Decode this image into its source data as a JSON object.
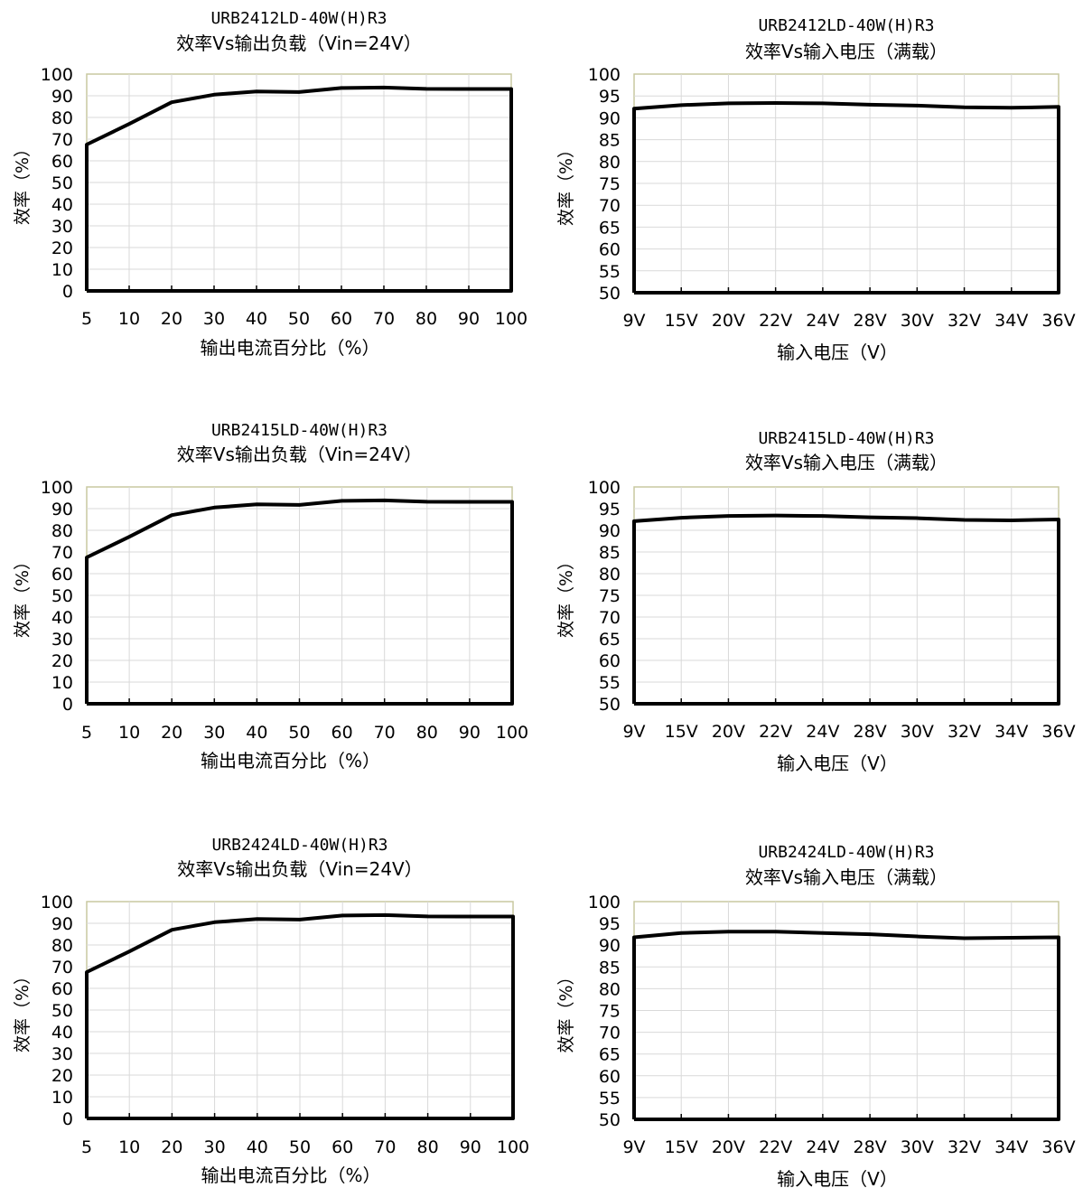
{
  "chart_data": [
    {
      "type": "line",
      "title": "URB2412LD-40W(H)R3",
      "subtitle": "效率Vs输出负载（Vin=24V）",
      "xlabel": "输出电流百分比（%）",
      "ylabel": "效率（%）",
      "categories": [
        "5",
        "10",
        "20",
        "30",
        "40",
        "50",
        "60",
        "70",
        "80",
        "90",
        "100"
      ],
      "yticks": [
        "0",
        "10",
        "20",
        "30",
        "40",
        "50",
        "60",
        "70",
        "80",
        "90",
        "100"
      ],
      "ylim": [
        0,
        100
      ],
      "grid": true,
      "series": [
        {
          "values": [
            67.5,
            77,
            87,
            90.5,
            92,
            91.7,
            93.6,
            93.8,
            93.2,
            93.1,
            93.1
          ]
        }
      ]
    },
    {
      "type": "line",
      "title": "URB2412LD-40W(H)R3",
      "subtitle": "效率Vs输入电压（满载）",
      "xlabel": "输入电压（V）",
      "ylabel": "效率（%）",
      "categories": [
        "9V",
        "15V",
        "20V",
        "22V",
        "24V",
        "28V",
        "30V",
        "32V",
        "34V",
        "36V"
      ],
      "yticks": [
        "50",
        "55",
        "60",
        "65",
        "70",
        "75",
        "80",
        "85",
        "90",
        "95",
        "100"
      ],
      "ylim": [
        50,
        100
      ],
      "grid": true,
      "series": [
        {
          "values": [
            92.1,
            92.9,
            93.3,
            93.4,
            93.3,
            93.0,
            92.8,
            92.4,
            92.3,
            92.5
          ]
        }
      ]
    },
    {
      "type": "line",
      "title": "URB2415LD-40W(H)R3",
      "subtitle": "效率Vs输出负载（Vin=24V）",
      "xlabel": "输出电流百分比（%）",
      "ylabel": "效率（%）",
      "categories": [
        "5",
        "10",
        "20",
        "30",
        "40",
        "50",
        "60",
        "70",
        "80",
        "90",
        "100"
      ],
      "yticks": [
        "0",
        "10",
        "20",
        "30",
        "40",
        "50",
        "60",
        "70",
        "80",
        "90",
        "100"
      ],
      "ylim": [
        0,
        100
      ],
      "grid": true,
      "series": [
        {
          "values": [
            67.5,
            77,
            87,
            90.5,
            92,
            91.7,
            93.6,
            93.8,
            93.2,
            93.1,
            93.1
          ]
        }
      ]
    },
    {
      "type": "line",
      "title": "URB2415LD-40W(H)R3",
      "subtitle": "效率Vs输入电压（满载）",
      "xlabel": "输入电压（V）",
      "ylabel": "效率（%）",
      "categories": [
        "9V",
        "15V",
        "20V",
        "22V",
        "24V",
        "28V",
        "30V",
        "32V",
        "34V",
        "36V"
      ],
      "yticks": [
        "50",
        "55",
        "60",
        "65",
        "70",
        "75",
        "80",
        "85",
        "90",
        "95",
        "100"
      ],
      "ylim": [
        50,
        100
      ],
      "grid": true,
      "series": [
        {
          "values": [
            92.1,
            92.9,
            93.3,
            93.4,
            93.3,
            93.0,
            92.8,
            92.4,
            92.3,
            92.5
          ]
        }
      ]
    },
    {
      "type": "line",
      "title": "URB2424LD-40W(H)R3",
      "subtitle": "效率Vs输出负载（Vin=24V）",
      "xlabel": "输出电流百分比（%）",
      "ylabel": "效率（%）",
      "categories": [
        "5",
        "10",
        "20",
        "30",
        "40",
        "50",
        "60",
        "70",
        "80",
        "90",
        "100"
      ],
      "yticks": [
        "0",
        "10",
        "20",
        "30",
        "40",
        "50",
        "60",
        "70",
        "80",
        "90",
        "100"
      ],
      "ylim": [
        0,
        100
      ],
      "grid": true,
      "series": [
        {
          "values": [
            67.5,
            77,
            87,
            90.5,
            92,
            91.7,
            93.6,
            93.8,
            93.2,
            93.1,
            93.1
          ]
        }
      ]
    },
    {
      "type": "line",
      "title": "URB2424LD-40W(H)R3",
      "subtitle": "效率Vs输入电压（满载）",
      "xlabel": "输入电压（V）",
      "ylabel": "效率（%）",
      "categories": [
        "9V",
        "15V",
        "20V",
        "22V",
        "24V",
        "28V",
        "30V",
        "32V",
        "34V",
        "36V"
      ],
      "yticks": [
        "50",
        "55",
        "60",
        "65",
        "70",
        "75",
        "80",
        "85",
        "90",
        "95",
        "100"
      ],
      "ylim": [
        50,
        100
      ],
      "grid": true,
      "series": [
        {
          "values": [
            91.8,
            92.8,
            93.1,
            93.1,
            92.8,
            92.5,
            92.0,
            91.6,
            91.7,
            91.8
          ]
        }
      ]
    }
  ],
  "colors": {
    "line": "#000000",
    "plot_border": "#c9c9a0",
    "grid": "#d9d9d9",
    "axis": "#000000",
    "text": "#000000"
  }
}
